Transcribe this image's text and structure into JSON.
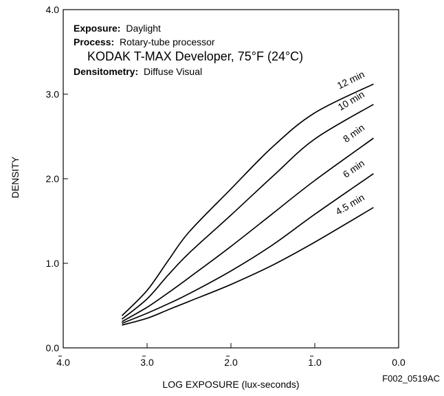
{
  "chart_data": {
    "type": "line",
    "xlabel": "LOG EXPOSURE (lux-seconds)",
    "ylabel": "DENSITY",
    "xlim": [
      -4.0,
      0.0
    ],
    "ylim": [
      0.0,
      4.0
    ],
    "x_tick_labels": [
      "4.0",
      "3.0",
      "2.0",
      "1.0",
      "0.0"
    ],
    "y_tick_labels": [
      "0.0",
      "1.0",
      "2.0",
      "3.0",
      "4.0"
    ],
    "figure_id": "F002_0519AC",
    "info": {
      "exposure_label": "Exposure:",
      "exposure_value": "Daylight",
      "process_label": "Process:",
      "process_value": "Rotary-tube processor",
      "developer": "KODAK T-MAX Developer, 75°F (24°C)",
      "densitometry_label": "Densitometry:",
      "densitometry_value": "Diffuse Visual"
    },
    "series": [
      {
        "name": "12 min",
        "x": [
          -3.3,
          -3.0,
          -2.75,
          -2.5,
          -2.0,
          -1.5,
          -1.0,
          -0.3
        ],
        "y": [
          0.38,
          0.68,
          1.03,
          1.37,
          1.88,
          2.38,
          2.78,
          3.12
        ]
      },
      {
        "name": "10 min",
        "x": [
          -3.3,
          -3.0,
          -2.75,
          -2.5,
          -2.0,
          -1.5,
          -1.0,
          -0.3
        ],
        "y": [
          0.34,
          0.58,
          0.86,
          1.12,
          1.57,
          2.03,
          2.47,
          2.88
        ]
      },
      {
        "name": "8 min",
        "x": [
          -3.3,
          -3.0,
          -2.75,
          -2.5,
          -2.0,
          -1.5,
          -1.0,
          -0.3
        ],
        "y": [
          0.31,
          0.48,
          0.65,
          0.83,
          1.2,
          1.59,
          1.98,
          2.48
        ]
      },
      {
        "name": "6 min",
        "x": [
          -3.3,
          -3.0,
          -2.75,
          -2.5,
          -2.0,
          -1.5,
          -1.0,
          -0.3
        ],
        "y": [
          0.29,
          0.41,
          0.52,
          0.64,
          0.91,
          1.22,
          1.58,
          2.06
        ]
      },
      {
        "name": "4.5 min",
        "x": [
          -3.3,
          -3.0,
          -2.75,
          -2.5,
          -2.0,
          -1.5,
          -1.0,
          -0.3
        ],
        "y": [
          0.27,
          0.35,
          0.45,
          0.55,
          0.75,
          0.98,
          1.25,
          1.66
        ]
      }
    ]
  }
}
